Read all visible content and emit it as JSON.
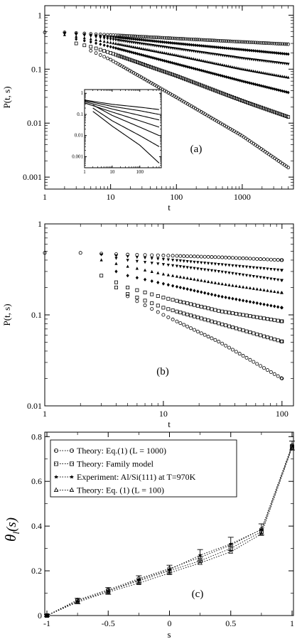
{
  "chart_data": [
    {
      "type": "scatter",
      "panel_label": "(a)",
      "xlabel": "t",
      "ylabel": "P(t, s)",
      "xscale": "log",
      "yscale": "log",
      "xlim": [
        1,
        6000
      ],
      "ylim": [
        0.0006,
        1.5
      ],
      "xticks": [
        {
          "v": 1,
          "label": "1"
        },
        {
          "v": 10,
          "label": "10"
        },
        {
          "v": 100,
          "label": "100"
        },
        {
          "v": 1000,
          "label": "1000"
        }
      ],
      "yticks": [
        {
          "v": 0.001,
          "label": "0.001"
        },
        {
          "v": 0.01,
          "label": "0.01"
        },
        {
          "v": 0.1,
          "label": "0.1"
        },
        {
          "v": 1,
          "label": "1"
        }
      ],
      "grid": false,
      "series": [
        {
          "marker": "circle",
          "points": [
            [
              1,
              0.48
            ],
            [
              2,
              0.48
            ],
            [
              3,
              0.47
            ],
            [
              5,
              0.45
            ],
            [
              10,
              0.43
            ],
            [
              100,
              0.37
            ],
            [
              1000,
              0.32
            ],
            [
              5000,
              0.29
            ]
          ]
        },
        {
          "marker": "diamond",
          "points": [
            [
              2,
              0.47
            ],
            [
              3,
              0.46
            ],
            [
              5,
              0.43
            ],
            [
              10,
              0.4
            ],
            [
              100,
              0.3
            ],
            [
              1000,
              0.23
            ],
            [
              5000,
              0.19
            ]
          ]
        },
        {
          "marker": "triangle-down",
          "points": [
            [
              2,
              0.46
            ],
            [
              3,
              0.44
            ],
            [
              5,
              0.41
            ],
            [
              10,
              0.36
            ],
            [
              100,
              0.24
            ],
            [
              1000,
              0.16
            ],
            [
              5000,
              0.125
            ]
          ]
        },
        {
          "marker": "triangle-up",
          "points": [
            [
              2,
              0.43
            ],
            [
              3,
              0.4
            ],
            [
              5,
              0.36
            ],
            [
              10,
              0.31
            ],
            [
              100,
              0.18
            ],
            [
              1000,
              0.1
            ],
            [
              5000,
              0.07
            ]
          ]
        },
        {
          "marker": "diamond",
          "points": [
            [
              3,
              0.36
            ],
            [
              5,
              0.32
            ],
            [
              10,
              0.26
            ],
            [
              100,
              0.125
            ],
            [
              1000,
              0.06
            ],
            [
              5000,
              0.037
            ]
          ]
        },
        {
          "marker": "square",
          "points": [
            [
              3,
              0.3
            ],
            [
              5,
              0.26
            ],
            [
              10,
              0.2
            ],
            [
              100,
              0.075
            ],
            [
              1000,
              0.026
            ],
            [
              5000,
              0.013
            ]
          ]
        },
        {
          "marker": "circle",
          "points": [
            [
              5,
              0.22
            ],
            [
              10,
              0.15
            ],
            [
              100,
              0.03
            ],
            [
              1000,
              0.0058
            ],
            [
              5000,
              0.0015
            ]
          ]
        }
      ],
      "inset": {
        "xlim": [
          1,
          600
        ],
        "ylim": [
          0.0003,
          1.5
        ],
        "xticks": [
          {
            "v": 1,
            "label": "1"
          },
          {
            "v": 10,
            "label": "10"
          },
          {
            "v": 100,
            "label": "100"
          }
        ],
        "yticks": [
          {
            "v": 0.001,
            "label": "0.001"
          },
          {
            "v": 0.01,
            "label": "0.01"
          },
          {
            "v": 0.1,
            "label": "0.1"
          },
          {
            "v": 1,
            "label": "1"
          }
        ],
        "series": [
          {
            "points": [
              [
                1,
                0.48
              ],
              [
                10,
                0.3
              ],
              [
                100,
                0.22
              ],
              [
                500,
                0.17
              ]
            ]
          },
          {
            "points": [
              [
                1,
                0.45
              ],
              [
                10,
                0.24
              ],
              [
                100,
                0.15
              ],
              [
                500,
                0.1
              ]
            ]
          },
          {
            "points": [
              [
                1,
                0.4
              ],
              [
                10,
                0.18
              ],
              [
                100,
                0.09
              ],
              [
                500,
                0.055
              ]
            ]
          },
          {
            "points": [
              [
                1,
                0.35
              ],
              [
                10,
                0.13
              ],
              [
                100,
                0.05
              ],
              [
                500,
                0.025
              ]
            ]
          },
          {
            "points": [
              [
                2,
                0.28
              ],
              [
                10,
                0.09
              ],
              [
                100,
                0.025
              ],
              [
                500,
                0.01
              ]
            ]
          },
          {
            "points": [
              [
                2,
                0.2
              ],
              [
                10,
                0.05
              ],
              [
                100,
                0.01
              ],
              [
                500,
                0.003
              ]
            ]
          },
          {
            "points": [
              [
                2,
                0.14
              ],
              [
                10,
                0.028
              ],
              [
                100,
                0.0035
              ],
              [
                500,
                0.0005
              ]
            ]
          }
        ]
      }
    },
    {
      "type": "scatter",
      "panel_label": "(b)",
      "xlabel": "t",
      "ylabel": "P(t, s)",
      "xscale": "log",
      "yscale": "log",
      "xlim": [
        1,
        125
      ],
      "ylim": [
        0.01,
        1
      ],
      "xticks": [
        {
          "v": 1,
          "label": "1"
        },
        {
          "v": 10,
          "label": "10"
        },
        {
          "v": 100,
          "label": "100"
        }
      ],
      "yticks": [
        {
          "v": 0.01,
          "label": "0.01"
        },
        {
          "v": 0.1,
          "label": "0.1"
        },
        {
          "v": 1,
          "label": "1"
        }
      ],
      "grid": false,
      "series": [
        {
          "marker": "circle",
          "points": [
            [
              1,
              0.48
            ],
            [
              2,
              0.48
            ],
            [
              5,
              0.46
            ],
            [
              10,
              0.45
            ],
            [
              30,
              0.43
            ],
            [
              100,
              0.4
            ]
          ]
        },
        {
          "marker": "triangle-down",
          "points": [
            [
              3,
              0.46
            ],
            [
              5,
              0.44
            ],
            [
              10,
              0.41
            ],
            [
              30,
              0.36
            ],
            [
              100,
              0.31
            ]
          ]
        },
        {
          "marker": "triangle-down",
          "points": [
            [
              4,
              0.42
            ],
            [
              5,
              0.4
            ],
            [
              10,
              0.36
            ],
            [
              30,
              0.3
            ],
            [
              100,
              0.24
            ]
          ]
        },
        {
          "marker": "triangle-up",
          "points": [
            [
              3,
              0.4
            ],
            [
              5,
              0.34
            ],
            [
              10,
              0.28
            ],
            [
              30,
              0.22
            ],
            [
              100,
              0.175
            ]
          ]
        },
        {
          "marker": "diamond",
          "points": [
            [
              4,
              0.3
            ],
            [
              5,
              0.27
            ],
            [
              10,
              0.22
            ],
            [
              30,
              0.16
            ],
            [
              100,
              0.12
            ]
          ]
        },
        {
          "marker": "square",
          "points": [
            [
              3,
              0.27
            ],
            [
              5,
              0.2
            ],
            [
              10,
              0.155
            ],
            [
              30,
              0.11
            ],
            [
              100,
              0.085
            ]
          ]
        },
        {
          "marker": "square",
          "points": [
            [
              4,
              0.2
            ],
            [
              5,
              0.17
            ],
            [
              10,
              0.12
            ],
            [
              30,
              0.08
            ],
            [
              100,
              0.051
            ]
          ]
        },
        {
          "marker": "circle",
          "points": [
            [
              5,
              0.16
            ],
            [
              10,
              0.1
            ],
            [
              30,
              0.05
            ],
            [
              100,
              0.02
            ]
          ]
        }
      ]
    },
    {
      "type": "line",
      "panel_label": "(c)",
      "xlabel": "s",
      "ylabel": "θl(s)",
      "ylabel_main": "θ",
      "ylabel_sub": "l",
      "ylabel_paren": "(s)",
      "xlim": [
        -1,
        1
      ],
      "ylim": [
        0,
        0.82
      ],
      "xticks": [
        {
          "v": -1,
          "label": "-1"
        },
        {
          "v": -0.5,
          "label": "-0.5"
        },
        {
          "v": 0,
          "label": "0"
        },
        {
          "v": 0.5,
          "label": "0.5"
        },
        {
          "v": 1,
          "label": "1"
        }
      ],
      "yticks": [
        {
          "v": 0,
          "label": "0"
        },
        {
          "v": 0.2,
          "label": "0.2"
        },
        {
          "v": 0.4,
          "label": "0.4"
        },
        {
          "v": 0.6,
          "label": "0.6"
        },
        {
          "v": 0.8,
          "label": "0.8"
        }
      ],
      "legend": "top-left",
      "grid": false,
      "x": [
        -1,
        -0.75,
        -0.5,
        -0.25,
        0,
        0.25,
        0.5,
        0.75,
        1
      ],
      "series": [
        {
          "name": "Theory: Eq.(1) (L = 1000)",
          "marker": "circle",
          "values": [
            0,
            0.07,
            0.115,
            0.165,
            0.21,
            0.26,
            0.315,
            0.385,
            0.76
          ]
        },
        {
          "name": "Theory: Family model",
          "marker": "square",
          "values": [
            0,
            0.065,
            0.11,
            0.155,
            0.2,
            0.245,
            0.3,
            0.375,
            0.755
          ]
        },
        {
          "name": "Experiment: Al/Si(111) at T=970K",
          "marker": "star",
          "values": [
            0,
            0.065,
            0.11,
            0.16,
            0.205,
            0.27,
            0.32,
            0.385,
            0.76
          ],
          "errors": [
            0.005,
            0.012,
            0.015,
            0.018,
            0.02,
            0.025,
            0.03,
            0.025,
            0.02
          ]
        },
        {
          "name": "Theory: Eq. (1) (L = 100)",
          "marker": "triangle",
          "values": [
            0,
            0.06,
            0.105,
            0.145,
            0.19,
            0.235,
            0.285,
            0.365,
            0.75
          ]
        }
      ]
    }
  ]
}
